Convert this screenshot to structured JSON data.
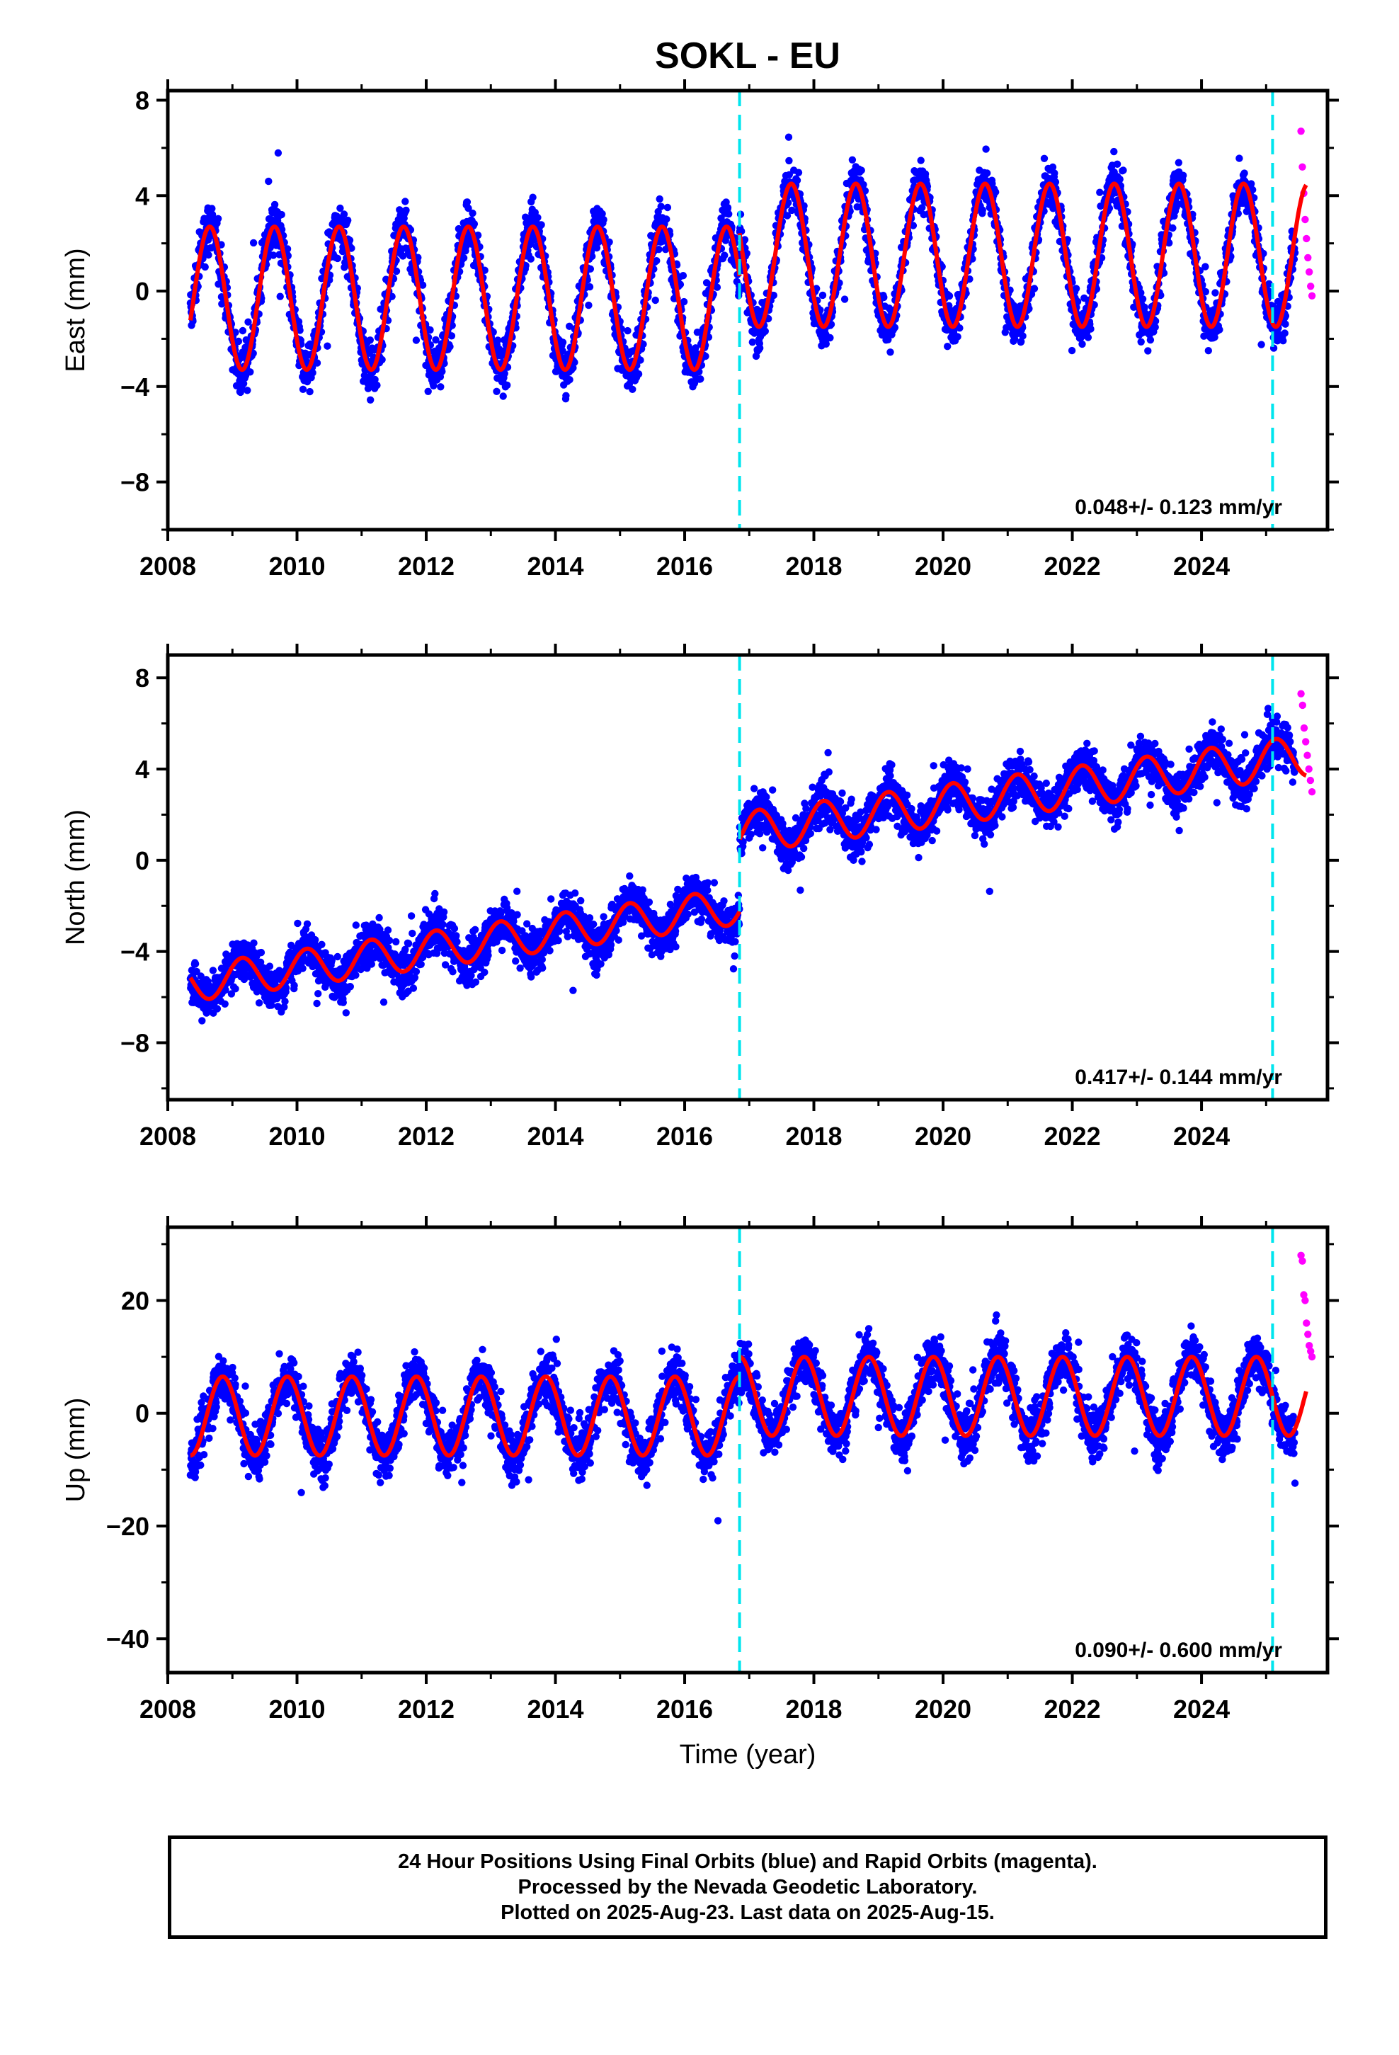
{
  "title": "SOKL - EU",
  "colors": {
    "final_orbits": "#0000ff",
    "rapid_orbits": "#ff00ff",
    "model": "#ff0000",
    "event_lines": "#00e5ee"
  },
  "footer": {
    "line1": "24 Hour Positions Using Final Orbits (blue) and Rapid Orbits (magenta).",
    "line2": "Processed by the Nevada Geodetic Laboratory.",
    "line3": "Plotted on 2025-Aug-23. Last data on 2025-Aug-15."
  },
  "chart_data": [
    {
      "type": "scatter",
      "component": "east",
      "ylabel": "East (mm)",
      "xlabel": "",
      "xlim": [
        2008,
        2025.95
      ],
      "ylim": [
        -10,
        8.4
      ],
      "xticks": [
        2008,
        2010,
        2012,
        2014,
        2016,
        2018,
        2020,
        2022,
        2024
      ],
      "yticks": [
        -8,
        -4,
        0,
        4,
        8
      ],
      "event_lines": [
        2016.85,
        2025.1
      ],
      "velocity_label": "0.048+/- 0.123 mm/yr",
      "data_span": [
        2008.35,
        2025.45
      ],
      "rapid_span": [
        2025.45,
        2025.62
      ],
      "model_segments": [
        {
          "x0": 2008.35,
          "x1": 2016.85,
          "offset": -0.3,
          "amplitude": 3.0,
          "phase": 2008.4,
          "noise": 1.4
        },
        {
          "x0": 2016.85,
          "x1": 2025.62,
          "offset": 1.5,
          "amplitude": 3.0,
          "phase": 2008.4,
          "noise": 1.3
        }
      ],
      "rapid_values": [
        6.7,
        5.2,
        4.1,
        3.0,
        2.2,
        1.4,
        0.8,
        0.2,
        -0.2
      ]
    },
    {
      "type": "scatter",
      "component": "north",
      "ylabel": "North (mm)",
      "xlabel": "",
      "xlim": [
        2008,
        2025.95
      ],
      "ylim": [
        -10.5,
        9
      ],
      "xticks": [
        2008,
        2010,
        2012,
        2014,
        2016,
        2018,
        2020,
        2022,
        2024
      ],
      "yticks": [
        -8,
        -4,
        0,
        4,
        8
      ],
      "event_lines": [
        2016.85,
        2025.1
      ],
      "velocity_label": "0.417+/- 0.144 mm/yr",
      "data_span": [
        2008.35,
        2025.45
      ],
      "rapid_span": [
        2025.45,
        2025.62
      ],
      "model_segments": [
        {
          "x0": 2008.35,
          "x1": 2016.85,
          "start": -5.4,
          "end": -2.0,
          "amplitude": 0.8,
          "phase": 2008.9,
          "noise": 1.3
        },
        {
          "x0": 2016.85,
          "x1": 2025.62,
          "start": 1.2,
          "end": 4.6,
          "amplitude": 0.9,
          "phase": 2008.9,
          "noise": 1.3
        }
      ],
      "rapid_values": [
        7.3,
        6.8,
        5.8,
        5.2,
        4.6,
        4.0,
        3.5,
        3.0
      ]
    },
    {
      "type": "scatter",
      "component": "up",
      "ylabel": "Up (mm)",
      "xlabel": "Time (year)",
      "xlim": [
        2008,
        2025.95
      ],
      "ylim": [
        -46,
        33
      ],
      "xticks": [
        2008,
        2010,
        2012,
        2014,
        2016,
        2018,
        2020,
        2022,
        2024
      ],
      "yticks": [
        -40,
        -20,
        0,
        20
      ],
      "event_lines": [
        2016.85,
        2025.1
      ],
      "velocity_label": "0.090+/- 0.600 mm/yr",
      "data_span": [
        2008.35,
        2025.45
      ],
      "rapid_span": [
        2025.45,
        2025.62
      ],
      "model_segments": [
        {
          "x0": 2008.35,
          "x1": 2016.85,
          "offset": -0.5,
          "amplitude": 7.0,
          "phase": 2008.6,
          "noise": 6.0
        },
        {
          "x0": 2016.85,
          "x1": 2025.62,
          "offset": 3.0,
          "amplitude": 7.0,
          "phase": 2008.6,
          "noise": 6.0
        }
      ],
      "rapid_values": [
        28,
        27,
        21,
        20,
        16,
        14,
        12,
        11,
        10
      ]
    }
  ]
}
